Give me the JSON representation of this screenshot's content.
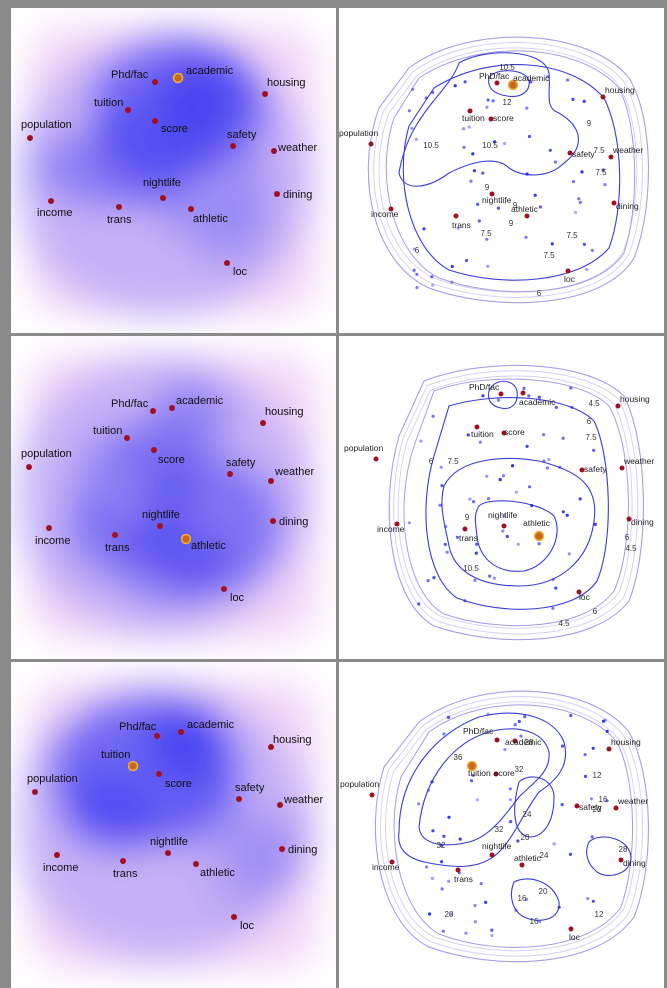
{
  "colors": {
    "attribute_point": "#a01020",
    "highlight_fill": "#c86a1a",
    "highlight_ring": "#f0b040",
    "density": "#2a2af0",
    "contour": "#3a3ad8",
    "sample_dot": "#2a2af0",
    "frame": "#8a8a8a"
  },
  "rows": [
    {
      "highlighted": "academic",
      "heatmap": {
        "points": [
          {
            "name": "Phd/fac"
          },
          {
            "name": "academic"
          },
          {
            "name": "tuition"
          },
          {
            "name": "score"
          },
          {
            "name": "housing"
          },
          {
            "name": "population"
          },
          {
            "name": "safety"
          },
          {
            "name": "weather"
          },
          {
            "name": "nightlife"
          },
          {
            "name": "dining"
          },
          {
            "name": "income"
          },
          {
            "name": "trans"
          },
          {
            "name": "athletic"
          },
          {
            "name": "loc"
          }
        ]
      },
      "contour": {
        "points": [
          {
            "name": "PhD/fac"
          },
          {
            "name": "academic"
          },
          {
            "name": "tuition"
          },
          {
            "name": "score"
          },
          {
            "name": "housing"
          },
          {
            "name": "population"
          },
          {
            "name": "safety"
          },
          {
            "name": "weather"
          },
          {
            "name": "nightlife"
          },
          {
            "name": "dining"
          },
          {
            "name": "income"
          },
          {
            "name": "trans"
          },
          {
            "name": "athletic"
          },
          {
            "name": "loc"
          }
        ],
        "level_labels": [
          "10.5",
          "12",
          "10.5",
          "10.5",
          "9",
          "9",
          "7.5",
          "9",
          "9",
          "7.5",
          "7.5",
          "7.5",
          "7.5",
          "6",
          "6"
        ]
      }
    },
    {
      "highlighted": "athletic",
      "heatmap": {
        "points": [
          {
            "name": "Phd/fac"
          },
          {
            "name": "academic"
          },
          {
            "name": "tuition"
          },
          {
            "name": "score"
          },
          {
            "name": "housing"
          },
          {
            "name": "population"
          },
          {
            "name": "safety"
          },
          {
            "name": "weather"
          },
          {
            "name": "nightlife"
          },
          {
            "name": "dining"
          },
          {
            "name": "income"
          },
          {
            "name": "trans"
          },
          {
            "name": "athletic"
          },
          {
            "name": "loc"
          }
        ]
      },
      "contour": {
        "points": [
          {
            "name": "PhD/fac"
          },
          {
            "name": "academic"
          },
          {
            "name": "tuition"
          },
          {
            "name": "score"
          },
          {
            "name": "housing"
          },
          {
            "name": "population"
          },
          {
            "name": "safety"
          },
          {
            "name": "weather"
          },
          {
            "name": "nightlife"
          },
          {
            "name": "dining"
          },
          {
            "name": "income"
          },
          {
            "name": "trans"
          },
          {
            "name": "athletic"
          },
          {
            "name": "loc"
          }
        ],
        "level_labels": [
          "4.5",
          "6",
          "7.5",
          "6",
          "7.5",
          "9",
          "10.5",
          "6",
          "4.5",
          "6",
          "4.5"
        ]
      }
    },
    {
      "highlighted": "tuition",
      "heatmap": {
        "points": [
          {
            "name": "Phd/fac"
          },
          {
            "name": "academic"
          },
          {
            "name": "tuition"
          },
          {
            "name": "score"
          },
          {
            "name": "housing"
          },
          {
            "name": "population"
          },
          {
            "name": "safety"
          },
          {
            "name": "weather"
          },
          {
            "name": "nightlife"
          },
          {
            "name": "dining"
          },
          {
            "name": "income"
          },
          {
            "name": "trans"
          },
          {
            "name": "athletic"
          },
          {
            "name": "loc"
          }
        ]
      },
      "contour": {
        "points": [
          {
            "name": "PhD/fac"
          },
          {
            "name": "academic"
          },
          {
            "name": "tuition"
          },
          {
            "name": "score"
          },
          {
            "name": "housing"
          },
          {
            "name": "population"
          },
          {
            "name": "safety"
          },
          {
            "name": "weather"
          },
          {
            "name": "nightlife"
          },
          {
            "name": "dining"
          },
          {
            "name": "income"
          },
          {
            "name": "trans"
          },
          {
            "name": "athletic"
          },
          {
            "name": "loc"
          }
        ],
        "level_labels": [
          "36",
          "28",
          "32",
          "32",
          "12",
          "16",
          "20",
          "24",
          "20",
          "24",
          "28",
          "32",
          "20",
          "16",
          "20",
          "16",
          "12"
        ]
      }
    }
  ]
}
